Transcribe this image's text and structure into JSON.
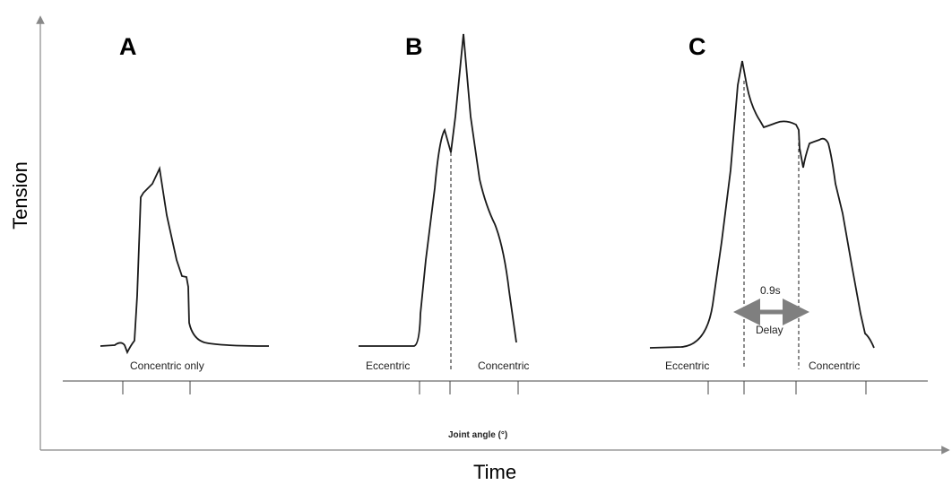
{
  "axes": {
    "y_title": "Tension",
    "x_title": "Time",
    "inner_x_title": "Joint angle (°)"
  },
  "panels": {
    "a": {
      "letter": "A",
      "phase_label": "Concentric only"
    },
    "b": {
      "letter": "B",
      "phase_left": "Eccentric",
      "phase_right": "Concentric"
    },
    "c": {
      "letter": "C",
      "phase_left": "Eccentric",
      "phase_right": "Concentric",
      "delay_value": "0.9s",
      "delay_label": "Delay"
    }
  },
  "colors": {
    "curve": "#1a1a1a",
    "axis": "#888888",
    "arrow": "#7f7f7f"
  }
}
